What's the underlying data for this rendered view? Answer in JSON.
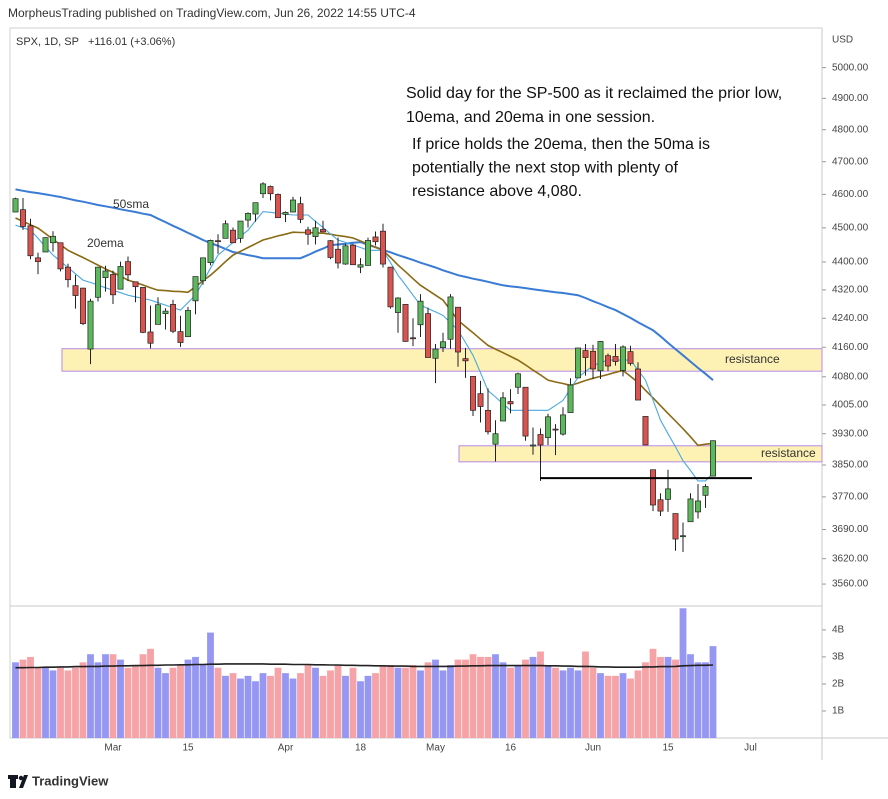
{
  "header": {
    "publisher": "MorpheusTrading published on TradingView.com, Jun 26, 2022 14:55 UTC-4",
    "symbol": "SPX, 1D, SP",
    "change": "+116.01 (+3.06%)",
    "currency": "USD"
  },
  "footer": "TradingView",
  "chart_data": {
    "type": "candlestick",
    "log": true,
    "ylim": [
      3509,
      5132
    ],
    "yticks": [
      {
        "value": 5000,
        "label": "5000.00"
      },
      {
        "value": 4900,
        "label": "4900.00"
      },
      {
        "value": 4800,
        "label": "4800.00"
      },
      {
        "value": 4700,
        "label": "4700.00"
      },
      {
        "value": 4600,
        "label": "4600.00"
      },
      {
        "value": 4500,
        "label": "4500.00"
      },
      {
        "value": 4400,
        "label": "4400.00"
      },
      {
        "value": 4320,
        "label": "4320.00"
      },
      {
        "value": 4240,
        "label": "4240.00"
      },
      {
        "value": 4160,
        "label": "4160.00"
      },
      {
        "value": 4080,
        "label": "4080.00"
      },
      {
        "value": 4005,
        "label": "4005.00"
      },
      {
        "value": 3930,
        "label": "3930.00"
      },
      {
        "value": 3850,
        "label": "3850.00"
      },
      {
        "value": 3770,
        "label": "3770.00"
      },
      {
        "value": 3690,
        "label": "3690.00"
      },
      {
        "value": 3620,
        "label": "3620.00"
      },
      {
        "value": 3560,
        "label": "3560.00"
      }
    ],
    "y2lim": [
      0,
      4.81
    ],
    "y2ticks": [
      {
        "value": 4,
        "label": "4B"
      },
      {
        "value": 3,
        "label": "3B"
      },
      {
        "value": 2,
        "label": "2B"
      },
      {
        "value": 1,
        "label": "1B"
      }
    ],
    "up_color": "#5cb85c",
    "down_color": "#d9534f",
    "categories": [
      null,
      null,
      null,
      null,
      null,
      null,
      null,
      null,
      null,
      null,
      null,
      null,
      null,
      "Mar",
      null,
      null,
      null,
      null,
      null,
      null,
      null,
      null,
      null,
      "15",
      null,
      null,
      null,
      null,
      null,
      null,
      null,
      null,
      null,
      null,
      null,
      null,
      "Apr",
      null,
      null,
      null,
      null,
      null,
      null,
      null,
      null,
      null,
      "18",
      null,
      null,
      null,
      null,
      null,
      null,
      null,
      null,
      null,
      "May",
      null,
      null,
      null,
      null,
      null,
      null,
      null,
      null,
      null,
      "16",
      null,
      null,
      null,
      null,
      null,
      null,
      null,
      null,
      null,
      null,
      "Jun",
      null,
      null,
      null,
      null,
      null,
      null,
      null,
      null,
      null,
      "15",
      null,
      null,
      null,
      null,
      null,
      null,
      null,
      null,
      null,
      null,
      "Jul"
    ],
    "open": [
      4547,
      4554,
      4506,
      4412,
      4429,
      4456,
      4456,
      4385,
      4332,
      4325,
      4155,
      4299,
      4355,
      4364,
      4322,
      4401,
      4343,
      4327,
      4202,
      4223,
      4253,
      4279,
      4203,
      4189,
      4289,
      4346,
      4398,
      4462,
      4469,
      4493,
      4469,
      4523,
      4541,
      4602,
      4624,
      4600,
      4540,
      4547,
      4572,
      4494,
      4474,
      4495,
      4462,
      4437,
      4394,
      4449,
      4385,
      4390,
      4473,
      4490,
      4385,
      4256,
      4279,
      4186,
      4222,
      4253,
      4130,
      4159,
      4182,
      4271,
      4129,
      4081,
      4035,
      3991,
      3903,
      3963,
      4014,
      4052,
      4052,
      3899,
      3928,
      3920,
      3942,
      3929,
      3985,
      4077,
      4151,
      4149,
      4096,
      4137,
      4135,
      4097,
      4148,
      4101,
      3975,
      3838,
      3763,
      3764,
      3729,
      3675,
      3709,
      3733,
      3774,
      3822,
      null,
      null,
      null,
      null,
      null
    ],
    "high": [
      4590,
      4589,
      4527,
      4427,
      4472,
      4490,
      4456,
      4395,
      4363,
      4326,
      4295,
      4385,
      4389,
      4375,
      4401,
      4416,
      4343,
      4327,
      4276,
      4299,
      4268,
      4292,
      4247,
      4272,
      4358,
      4412,
      4465,
      4481,
      4522,
      4501,
      4520,
      4546,
      4575,
      4637,
      4627,
      4603,
      4549,
      4593,
      4593,
      4503,
      4521,
      4521,
      4464,
      4471,
      4453,
      4453,
      4411,
      4471,
      4489,
      4512,
      4386,
      4299,
      4279,
      4240,
      4308,
      4270,
      4169,
      4200,
      4308,
      4271,
      4158,
      4082,
      4069,
      4049,
      3965,
      4039,
      4047,
      4091,
      4052,
      3946,
      3944,
      3982,
      3955,
      3999,
      4076,
      4158,
      4169,
      4167,
      4177,
      4143,
      4169,
      4165,
      4164,
      4119,
      3975,
      3838,
      3779,
      3838,
      3729,
      3707,
      3779,
      3802,
      3802,
      3913,
      null,
      null,
      null,
      null,
      null
    ],
    "low": [
      4547,
      4494,
      4408,
      4365,
      4429,
      4430,
      4373,
      4327,
      4267,
      4221,
      4114,
      4287,
      4315,
      4280,
      4322,
      4345,
      4285,
      4199,
      4157,
      4223,
      4209,
      4199,
      4161,
      4188,
      4251,
      4335,
      4390,
      4424,
      4469,
      4455,
      4456,
      4501,
      4518,
      4589,
      4582,
      4530,
      4517,
      4546,
      4514,
      4450,
      4451,
      4487,
      4408,
      4381,
      4392,
      4392,
      4368,
      4390,
      4448,
      4384,
      4267,
      4200,
      4175,
      4163,
      4188,
      4132,
      4063,
      4147,
      4156,
      4107,
      4077,
      3976,
      3959,
      3928,
      3859,
      3963,
      3983,
      4034,
      3912,
      3876,
      3810,
      3901,
      3875,
      3925,
      3985,
      4077,
      4083,
      4074,
      4074,
      4096,
      4110,
      4081,
      4110,
      4018,
      3901,
      3735,
      3723,
      3733,
      3639,
      3636,
      3709,
      3717,
      3743,
      3822,
      null,
      null,
      null,
      null,
      null
    ],
    "close": [
      4587,
      4504,
      4418,
      4401,
      4471,
      4475,
      4380,
      4349,
      4304,
      4225,
      4288,
      4385,
      4374,
      4306,
      4387,
      4363,
      4329,
      4201,
      4171,
      4278,
      4260,
      4204,
      4173,
      4262,
      4358,
      4412,
      4463,
      4461,
      4512,
      4456,
      4520,
      4543,
      4575,
      4632,
      4602,
      4530,
      4546,
      4583,
      4525,
      4481,
      4500,
      4488,
      4413,
      4397,
      4447,
      4392,
      4392,
      4463,
      4459,
      4394,
      4272,
      4297,
      4176,
      4184,
      4288,
      4132,
      4155,
      4175,
      4300,
      4147,
      4123,
      3991,
      4001,
      3935,
      3930,
      4024,
      4008,
      4088,
      3924,
      3901,
      3901,
      3974,
      3941,
      3979,
      4058,
      4158,
      4132,
      4101,
      4176,
      4109,
      4121,
      4161,
      4116,
      4018,
      3901,
      3750,
      3735,
      3790,
      3667,
      3675,
      3765,
      3760,
      3796,
      3912,
      null,
      null,
      null,
      null,
      null
    ],
    "series": [
      {
        "name": "50sma",
        "color": "#3a7bd5",
        "width": 2,
        "values": [
          4615,
          4611,
          4607,
          4604,
          4600,
          4596,
          4592,
          4587,
          4582,
          4578,
          4573,
          4568,
          4564,
          4560,
          4555,
          4551,
          4547,
          4542,
          4538,
          4527,
          4517,
          4506,
          4496,
          4485,
          4475,
          4464,
          4455,
          4447,
          4438,
          4429,
          4425,
          4420,
          4416,
          4411,
          4411,
          4411,
          4411,
          4411,
          4411,
          4420,
          4430,
          4439,
          4449,
          4451,
          4453,
          4456,
          4458,
          4450,
          4443,
          4435,
          4428,
          4420,
          4413,
          4406,
          4398,
          4391,
          4384,
          4376,
          4369,
          4362,
          4357,
          4352,
          4348,
          4343,
          4338,
          4333,
          4330,
          4328,
          4325,
          4322,
          4319,
          4316,
          4313,
          4311,
          4308,
          4305,
          4297,
          4288,
          4280,
          4271,
          4263,
          4252,
          4241,
          4229,
          4218,
          4207,
          4190,
          4172,
          4155,
          4138,
          4121,
          4104,
          4088,
          4071,
          null,
          null,
          null,
          null,
          null
        ]
      },
      {
        "name": "20ema",
        "color": "#8a6a14",
        "width": 1.6,
        "values": [
          4529,
          4519,
          4509,
          4499,
          4483,
          4466,
          4450,
          4434,
          4423,
          4413,
          4402,
          4391,
          4380,
          4370,
          4359,
          4348,
          4341,
          4334,
          4326,
          4319,
          4318,
          4316,
          4315,
          4313,
          4329,
          4346,
          4362,
          4381,
          4401,
          4420,
          4431,
          4442,
          4453,
          4464,
          4470,
          4476,
          4481,
          4487,
          4486,
          4486,
          4485,
          4484,
          4481,
          4477,
          4474,
          4470,
          4461,
          4452,
          4443,
          4434,
          4413,
          4391,
          4372,
          4352,
          4333,
          4319,
          4305,
          4291,
          4263,
          4234,
          4217,
          4200,
          4182,
          4165,
          4155,
          4145,
          4135,
          4125,
          4112,
          4098,
          4085,
          4071,
          4066,
          4062,
          4057,
          4063,
          4070,
          4076,
          4081,
          4086,
          4092,
          4097,
          4081,
          4065,
          4044,
          4024,
          4003,
          3983,
          3963,
          3943,
          3922,
          3900,
          3903,
          3905,
          null,
          null,
          null,
          null,
          null
        ]
      },
      {
        "color": "#4aa8e0",
        "width": 1.1,
        "values": [
          4508,
          4500,
          4493,
          4469,
          4444,
          4420,
          4402,
          4384,
          4366,
          4348,
          4341,
          4334,
          4326,
          4319,
          4312,
          4305,
          4300,
          4296,
          4291,
          4284,
          4277,
          4270,
          4263,
          4284,
          4305,
          4343,
          4382,
          4420,
          4438,
          4457,
          4475,
          4493,
          4521,
          4548,
          4546,
          4543,
          4541,
          4538,
          4538,
          4538,
          4519,
          4501,
          4482,
          4464,
          4457,
          4449,
          4442,
          4434,
          4434,
          4434,
          4398,
          4362,
          4334,
          4305,
          4277,
          4267,
          4258,
          4248,
          4228,
          4207,
          4173,
          4138,
          4091,
          4043,
          4026,
          4008,
          3991,
          3991,
          3991,
          3991,
          3991,
          3991,
          4004,
          4017,
          4048,
          4078,
          4094,
          4110,
          4118,
          4125,
          4125,
          4125,
          4125,
          4098,
          4071,
          4018,
          3965,
          3930,
          3896,
          3861,
          3836,
          3810,
          3810,
          3830,
          null,
          null,
          null,
          null,
          null
        ]
      },
      {
        "type": "bar",
        "axis": "y2",
        "up_color": "#9597f3",
        "down_color": "#f5a3a6",
        "values": [
          2.8,
          2.9,
          3.0,
          2.6,
          2.6,
          2.5,
          2.6,
          2.5,
          2.6,
          2.8,
          3.1,
          2.8,
          3.1,
          3.1,
          2.9,
          2.6,
          2.7,
          3.1,
          3.3,
          2.6,
          2.4,
          2.6,
          2.7,
          2.9,
          3.0,
          2.7,
          3.9,
          2.6,
          2.3,
          2.4,
          2.2,
          2.3,
          2.1,
          2.4,
          2.3,
          2.6,
          2.4,
          2.2,
          2.4,
          2.7,
          2.6,
          2.3,
          2.5,
          2.7,
          2.3,
          2.6,
          2.1,
          2.3,
          2.4,
          2.7,
          2.7,
          2.6,
          2.6,
          2.7,
          2.5,
          2.8,
          2.9,
          2.5,
          2.7,
          2.9,
          2.9,
          3.1,
          3.0,
          3.0,
          3.1,
          2.8,
          2.6,
          2.7,
          2.9,
          3.0,
          3.2,
          2.7,
          2.6,
          2.5,
          2.6,
          2.5,
          3.2,
          2.6,
          2.4,
          2.3,
          2.3,
          2.4,
          2.2,
          2.5,
          2.8,
          3.3,
          3.0,
          3.0,
          2.9,
          4.8,
          3.1,
          2.8,
          2.8,
          3.4,
          null,
          null,
          null,
          null,
          null
        ]
      },
      {
        "axis": "y2",
        "color": "#222222",
        "width": 1.6,
        "values": [
          2.6,
          2.6,
          2.61,
          2.61,
          2.62,
          2.62,
          2.63,
          2.63,
          2.64,
          2.64,
          2.65,
          2.65,
          2.66,
          2.66,
          2.67,
          2.67,
          2.68,
          2.68,
          2.69,
          2.69,
          2.7,
          2.7,
          2.71,
          2.71,
          2.72,
          2.72,
          2.73,
          2.73,
          2.74,
          2.74,
          2.74,
          2.74,
          2.74,
          2.74,
          2.73,
          2.73,
          2.73,
          2.72,
          2.72,
          2.72,
          2.71,
          2.71,
          2.7,
          2.7,
          2.69,
          2.69,
          2.68,
          2.68,
          2.67,
          2.67,
          2.66,
          2.66,
          2.66,
          2.65,
          2.65,
          2.65,
          2.65,
          2.65,
          2.65,
          2.66,
          2.66,
          2.67,
          2.67,
          2.68,
          2.68,
          2.68,
          2.68,
          2.68,
          2.68,
          2.68,
          2.68,
          2.67,
          2.67,
          2.66,
          2.66,
          2.65,
          2.65,
          2.64,
          2.63,
          2.63,
          2.62,
          2.62,
          2.62,
          2.62,
          2.63,
          2.63,
          2.64,
          2.64,
          2.65,
          2.67,
          2.68,
          2.69,
          2.69,
          2.7,
          null,
          null,
          null,
          null,
          null
        ]
      }
    ],
    "zones": [
      {
        "label": "resistance",
        "range": [
          4095,
          4156
        ],
        "color": "#fdf1b4",
        "border": "#b98ae6"
      },
      {
        "label": "resistance",
        "range": [
          3858,
          3899
        ],
        "color": "#fdf1b4",
        "border": "#b98ae6"
      }
    ],
    "levels": [
      {
        "value": 3817,
        "color": "#000000"
      }
    ],
    "annotations": [
      {
        "lines": [
          "Solid day for the SP-500 as it reclaimed the prior low,",
          "10ema, and 20ema in one session."
        ]
      },
      {
        "lines": [
          "If price holds the 20ema, then the 50ma is",
          "potentially the next stop with plenty of",
          "resistance above 4,080."
        ]
      }
    ]
  }
}
